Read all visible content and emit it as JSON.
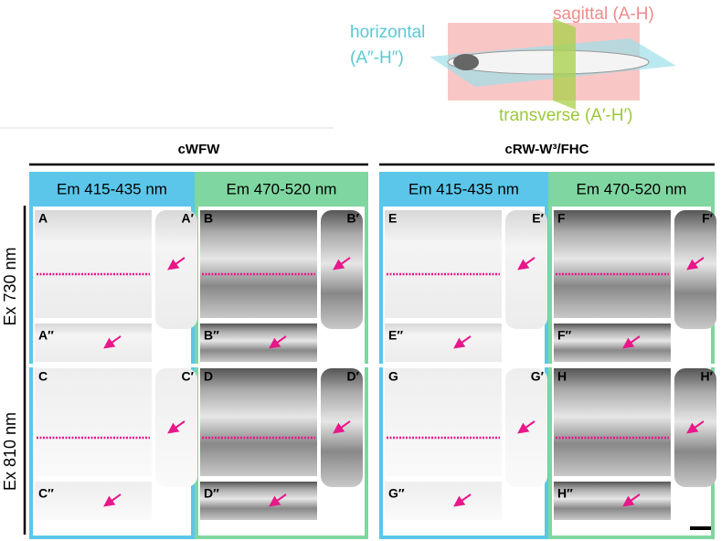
{
  "diagram": {
    "horizontal": [
      "horizontal",
      "(A″-H″)"
    ],
    "sagittal": "sagittal (A-H)",
    "transverse": "transverse (A′-H′)"
  },
  "groups": [
    {
      "title": "cWFW",
      "columns": [
        "Em 415-435 nm",
        "Em 470-520 nm"
      ]
    },
    {
      "title": "cRW-W³/FHC",
      "columns": [
        "Em 415-435 nm",
        "Em 470-520 nm"
      ]
    }
  ],
  "rows": [
    "Ex 730 nm",
    "Ex 810 nm"
  ],
  "panels": [
    [
      {
        "sagittal": "A",
        "transverse": "A′",
        "horizontal": "A″"
      },
      {
        "sagittal": "B",
        "transverse": "B′",
        "horizontal": "B″"
      },
      {
        "sagittal": "E",
        "transverse": "E′",
        "horizontal": "E″"
      },
      {
        "sagittal": "F",
        "transverse": "F′",
        "horizontal": "F″"
      }
    ],
    [
      {
        "sagittal": "C",
        "transverse": "C′",
        "horizontal": "C″"
      },
      {
        "sagittal": "D",
        "transverse": "D′",
        "horizontal": "D″"
      },
      {
        "sagittal": "G",
        "transverse": "G′",
        "horizontal": "G″"
      },
      {
        "sagittal": "H",
        "transverse": "H′",
        "horizontal": "H″"
      }
    ]
  ]
}
